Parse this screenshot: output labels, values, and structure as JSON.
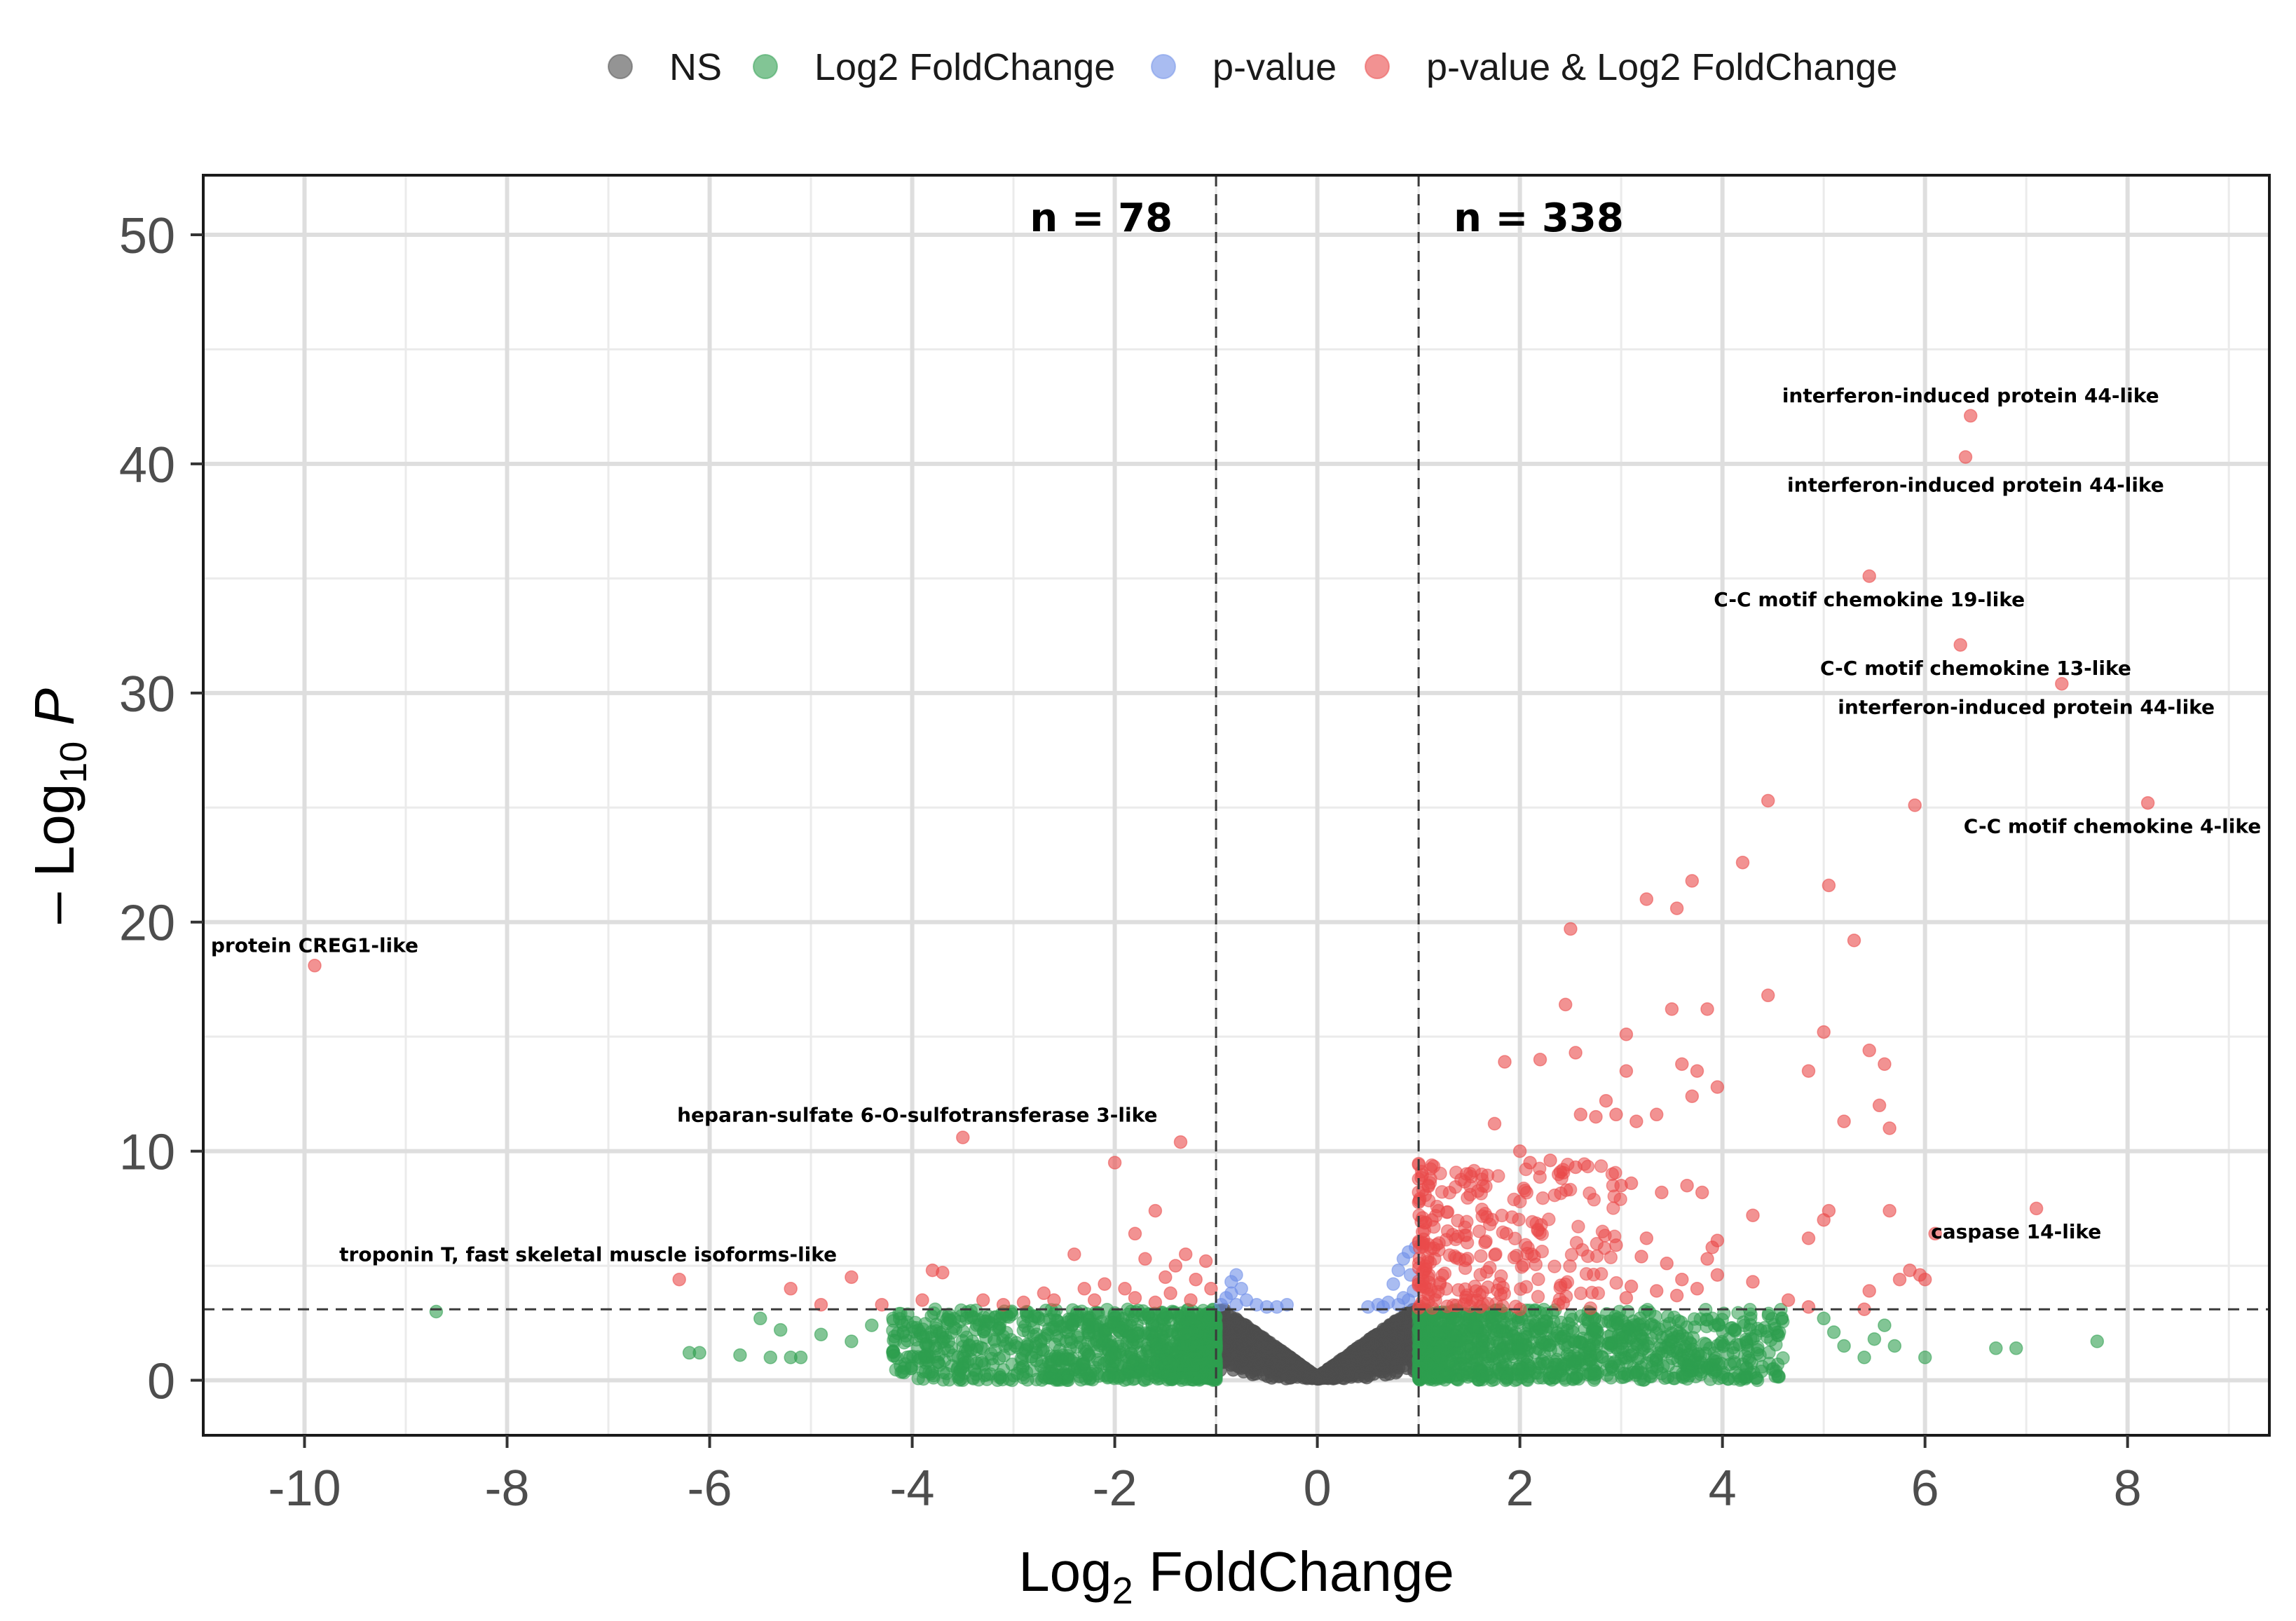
{
  "chart_data": {
    "type": "scatter",
    "subtype": "volcano",
    "xlabel_prefix": "Log",
    "xlabel_subscript": "2",
    "xlabel_suffix": " FoldChange",
    "ylabel_prefix": "– Log",
    "ylabel_subscript": "10",
    "ylabel_italic": "P",
    "xlim": [
      -11,
      9.4
    ],
    "ylim": [
      -2.4,
      52.6
    ],
    "xticks": [
      -10,
      -8,
      -6,
      -4,
      -2,
      0,
      2,
      4,
      6,
      8
    ],
    "xtick_labels": [
      "-10",
      "-8",
      "-6",
      "-4",
      "-2",
      "0",
      "2",
      "4",
      "6",
      "8"
    ],
    "yticks": [
      0,
      10,
      20,
      30,
      40,
      50
    ],
    "ytick_labels": [
      "0",
      "10",
      "20",
      "30",
      "40",
      "50"
    ],
    "grid": true,
    "legend_position": "top",
    "fc_cutoffs": [
      -1,
      1
    ],
    "p_cutoff": 3.1,
    "count_labels": [
      {
        "text": "n = 78",
        "side": "left"
      },
      {
        "text": "n = 338",
        "side": "right"
      }
    ],
    "series": [
      {
        "name": "NS",
        "color": "#4d4d4d",
        "generated_envelope": {
          "count": 1500,
          "x_range": [
            -1,
            1
          ],
          "base": 0.15,
          "slope": 3.2,
          "max_y": 3.1
        }
      },
      {
        "name": "Log2 FoldChange",
        "color": "#2e9e4f",
        "generated_cloud": {
          "count": 2200,
          "x_ranges": [
            [
              -4.2,
              -1
            ],
            [
              1,
              4.6
            ]
          ],
          "y_range": [
            0,
            3.1
          ]
        },
        "points": [
          [
            -8.7,
            3.0
          ],
          [
            -6.2,
            1.2
          ],
          [
            -6.1,
            1.2
          ],
          [
            -5.5,
            2.7
          ],
          [
            -5.3,
            2.2
          ],
          [
            -5.2,
            1.0
          ],
          [
            -5.1,
            1.0
          ],
          [
            -5.4,
            1.0
          ],
          [
            -5.7,
            1.1
          ],
          [
            -4.9,
            2.0
          ],
          [
            -4.6,
            1.7
          ],
          [
            -4.4,
            2.4
          ],
          [
            5.0,
            2.7
          ],
          [
            5.1,
            2.1
          ],
          [
            5.2,
            1.5
          ],
          [
            5.4,
            1.0
          ],
          [
            5.5,
            1.8
          ],
          [
            5.6,
            2.4
          ],
          [
            5.7,
            1.5
          ],
          [
            6.0,
            1.0
          ],
          [
            6.7,
            1.4
          ],
          [
            6.9,
            1.4
          ],
          [
            7.7,
            1.7
          ]
        ]
      },
      {
        "name": "p-value",
        "color": "#6f8fe8",
        "points": [
          [
            -0.95,
            3.3
          ],
          [
            -0.9,
            3.6
          ],
          [
            -0.85,
            4.3
          ],
          [
            -0.8,
            4.6
          ],
          [
            -0.75,
            4.0
          ],
          [
            -0.7,
            3.5
          ],
          [
            -0.6,
            3.3
          ],
          [
            -0.5,
            3.2
          ],
          [
            -0.4,
            3.2
          ],
          [
            -0.3,
            3.3
          ],
          [
            -0.85,
            3.8
          ],
          [
            -0.8,
            3.3
          ],
          [
            0.7,
            3.4
          ],
          [
            0.75,
            4.2
          ],
          [
            0.8,
            4.8
          ],
          [
            0.85,
            5.3
          ],
          [
            0.9,
            5.6
          ],
          [
            0.92,
            4.6
          ],
          [
            0.95,
            3.9
          ],
          [
            0.97,
            5.8
          ],
          [
            0.9,
            3.5
          ],
          [
            0.85,
            3.6
          ],
          [
            0.8,
            3.3
          ],
          [
            0.65,
            3.2
          ],
          [
            0.6,
            3.3
          ],
          [
            0.5,
            3.2
          ]
        ]
      },
      {
        "name": "p-value & Log2 FoldChange",
        "color": "#ea4a4a",
        "generated_cloud": {
          "count": 260,
          "x_range": [
            1,
            3.0
          ],
          "y_range": [
            3.1,
            9.5
          ]
        },
        "points": [
          [
            -9.9,
            18.1
          ],
          [
            -6.3,
            4.4
          ],
          [
            -5.2,
            4.0
          ],
          [
            -4.9,
            3.3
          ],
          [
            -4.6,
            4.5
          ],
          [
            -4.3,
            3.3
          ],
          [
            -3.8,
            4.8
          ],
          [
            -3.7,
            4.7
          ],
          [
            -3.9,
            3.5
          ],
          [
            -3.5,
            10.6
          ],
          [
            -3.3,
            3.5
          ],
          [
            -3.1,
            3.3
          ],
          [
            -2.9,
            3.4
          ],
          [
            -2.7,
            3.8
          ],
          [
            -2.6,
            3.5
          ],
          [
            -2.4,
            5.5
          ],
          [
            -2.3,
            4.0
          ],
          [
            -2.1,
            4.2
          ],
          [
            -2.0,
            9.5
          ],
          [
            -1.8,
            6.4
          ],
          [
            -1.7,
            5.3
          ],
          [
            -1.6,
            7.4
          ],
          [
            -1.5,
            4.5
          ],
          [
            -1.4,
            5.0
          ],
          [
            -1.35,
            10.4
          ],
          [
            -1.3,
            5.5
          ],
          [
            -1.2,
            4.4
          ],
          [
            -1.1,
            5.2
          ],
          [
            -1.05,
            4.0
          ],
          [
            -1.8,
            3.6
          ],
          [
            -1.6,
            3.4
          ],
          [
            -1.45,
            3.8
          ],
          [
            -1.25,
            3.5
          ],
          [
            -1.9,
            4.0
          ],
          [
            -2.2,
            3.5
          ],
          [
            6.45,
            42.1
          ],
          [
            6.4,
            40.3
          ],
          [
            5.45,
            35.1
          ],
          [
            6.35,
            32.1
          ],
          [
            7.35,
            30.4
          ],
          [
            8.2,
            25.2
          ],
          [
            4.45,
            25.3
          ],
          [
            5.9,
            25.1
          ],
          [
            4.2,
            22.6
          ],
          [
            3.7,
            21.8
          ],
          [
            5.05,
            21.6
          ],
          [
            3.25,
            21.0
          ],
          [
            3.55,
            20.6
          ],
          [
            2.5,
            19.7
          ],
          [
            5.3,
            19.2
          ],
          [
            2.45,
            16.4
          ],
          [
            3.5,
            16.2
          ],
          [
            3.85,
            16.2
          ],
          [
            4.45,
            16.8
          ],
          [
            5.0,
            15.2
          ],
          [
            3.05,
            15.1
          ],
          [
            1.85,
            13.9
          ],
          [
            2.2,
            14.0
          ],
          [
            2.55,
            14.3
          ],
          [
            3.6,
            13.8
          ],
          [
            3.75,
            13.5
          ],
          [
            3.05,
            13.5
          ],
          [
            5.45,
            14.4
          ],
          [
            5.6,
            13.8
          ],
          [
            4.85,
            13.5
          ],
          [
            3.95,
            12.8
          ],
          [
            3.7,
            12.4
          ],
          [
            2.85,
            12.2
          ],
          [
            2.95,
            11.6
          ],
          [
            2.6,
            11.6
          ],
          [
            2.75,
            11.5
          ],
          [
            3.15,
            11.3
          ],
          [
            3.35,
            11.6
          ],
          [
            5.55,
            12.0
          ],
          [
            5.65,
            11.0
          ],
          [
            5.2,
            11.3
          ],
          [
            1.75,
            11.2
          ],
          [
            2.0,
            10.0
          ],
          [
            2.1,
            9.5
          ],
          [
            2.3,
            9.6
          ],
          [
            2.4,
            9.1
          ],
          [
            2.55,
            9.3
          ],
          [
            3.0,
            8.5
          ],
          [
            3.1,
            8.6
          ],
          [
            3.4,
            8.2
          ],
          [
            3.65,
            8.5
          ],
          [
            3.8,
            8.2
          ],
          [
            4.3,
            7.2
          ],
          [
            5.05,
            7.4
          ],
          [
            5.65,
            7.4
          ],
          [
            5.0,
            7.0
          ],
          [
            4.85,
            6.2
          ],
          [
            6.1,
            6.4
          ],
          [
            7.1,
            7.5
          ],
          [
            5.85,
            4.8
          ],
          [
            5.95,
            4.6
          ],
          [
            5.75,
            4.4
          ],
          [
            6.0,
            4.4
          ],
          [
            5.45,
            3.9
          ],
          [
            5.4,
            3.1
          ],
          [
            4.85,
            3.2
          ],
          [
            4.65,
            3.5
          ],
          [
            4.3,
            4.3
          ],
          [
            3.95,
            4.6
          ],
          [
            3.85,
            5.3
          ],
          [
            3.95,
            6.1
          ],
          [
            3.9,
            5.8
          ],
          [
            3.6,
            4.4
          ],
          [
            3.45,
            5.1
          ],
          [
            3.25,
            6.2
          ],
          [
            3.1,
            4.1
          ],
          [
            3.2,
            5.4
          ],
          [
            2.95,
            5.9
          ],
          [
            3.05,
            3.6
          ],
          [
            3.35,
            3.9
          ],
          [
            3.55,
            3.7
          ],
          [
            3.75,
            4.0
          ]
        ]
      }
    ],
    "annotations": [
      {
        "text": "interferon-induced protein 44-like",
        "x": 6.45,
        "y": 42.1,
        "anchor": "middle",
        "dx": 0,
        "dy": 0.9
      },
      {
        "text": "interferon-induced protein 44-like",
        "x": 6.4,
        "y": 40.3,
        "anchor": "middle",
        "dx": 0.1,
        "dy": -1.2
      },
      {
        "text": "C-C motif chemokine 19-like",
        "x": 5.45,
        "y": 35.1,
        "anchor": "middle",
        "dx": 0.0,
        "dy": -1.0
      },
      {
        "text": "C-C motif chemokine 13-like",
        "x": 6.35,
        "y": 32.1,
        "anchor": "middle",
        "dx": 0.15,
        "dy": -1.0
      },
      {
        "text": "interferon-induced protein 44-like",
        "x": 7.35,
        "y": 30.4,
        "anchor": "middle",
        "dx": -0.35,
        "dy": -1.0
      },
      {
        "text": "C-C motif chemokine 4-like",
        "x": 8.2,
        "y": 25.2,
        "anchor": "middle",
        "dx": -0.35,
        "dy": -1.0
      },
      {
        "text": "protein CREG1-like",
        "x": -9.9,
        "y": 18.1,
        "anchor": "middle",
        "dx": 0.0,
        "dy": 0.9
      },
      {
        "text": "heparan-sulfate 6-O-sulfotransferase 3-like",
        "x": -3.5,
        "y": 10.6,
        "anchor": "middle",
        "dx": -0.45,
        "dy": 1.0
      },
      {
        "text": "caspase 14-like",
        "x": 7.1,
        "y": 7.5,
        "anchor": "middle",
        "dx": -0.2,
        "dy": -1.0
      },
      {
        "text": "troponin T, fast skeletal muscle isoforms-like",
        "x": -6.3,
        "y": 4.4,
        "anchor": "middle",
        "dx": -0.9,
        "dy": 1.1
      }
    ]
  }
}
